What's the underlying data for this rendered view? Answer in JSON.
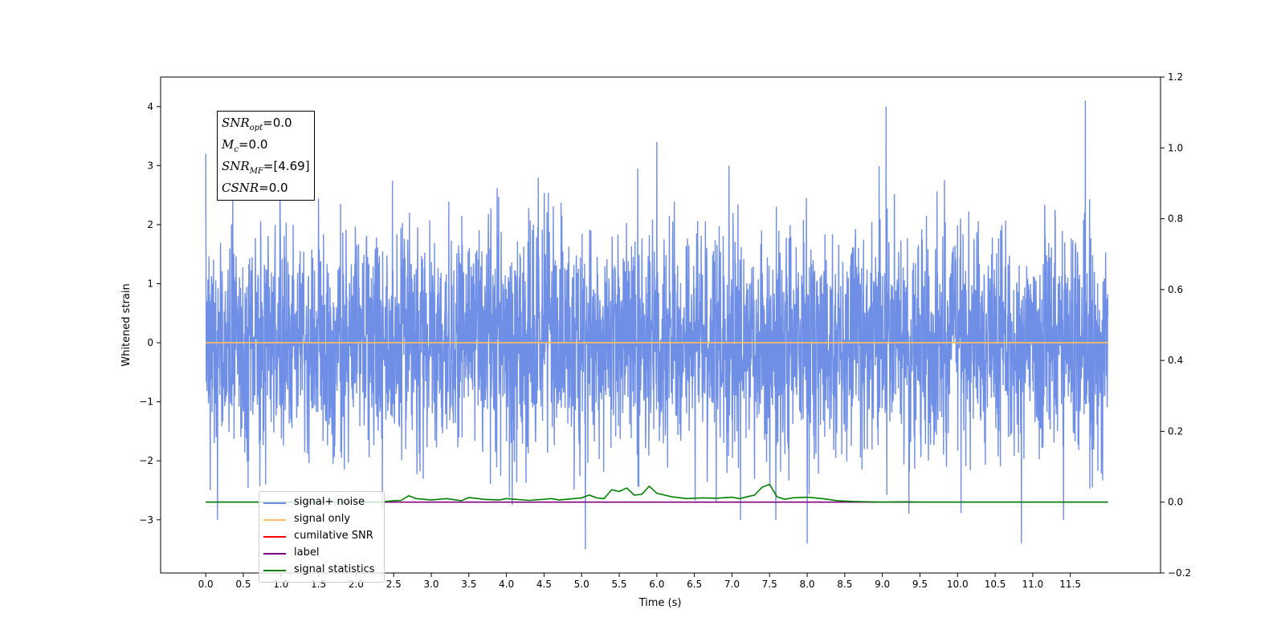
{
  "chart_data": {
    "type": "line",
    "xlabel": "Time (s)",
    "ylabel": "Whitened strain",
    "xlim": [
      -0.6,
      12.7
    ],
    "ylim": [
      -3.9,
      4.5
    ],
    "y2lim": [
      -0.2,
      1.2
    ],
    "x_ticks": [
      "0.0",
      "0.5",
      "1.0",
      "1.5",
      "2.0",
      "2.5",
      "3.0",
      "3.5",
      "4.0",
      "4.5",
      "5.0",
      "5.5",
      "6.0",
      "6.5",
      "7.0",
      "7.5",
      "8.0",
      "8.5",
      "9.0",
      "9.5",
      "10.0",
      "10.5",
      "11.0",
      "11.5"
    ],
    "y_ticks": [
      "−3",
      "−2",
      "−1",
      "0",
      "1",
      "2",
      "3",
      "4"
    ],
    "y_tick_values": [
      -3,
      -2,
      -1,
      0,
      1,
      2,
      3,
      4
    ],
    "y2_ticks": [
      "−0.2",
      "0.0",
      "0.2",
      "0.4",
      "0.6",
      "0.8",
      "1.0",
      "1.2"
    ],
    "y2_tick_values": [
      -0.2,
      0.0,
      0.2,
      0.4,
      0.6,
      0.8,
      1.0,
      1.2
    ],
    "series": [
      {
        "name": "signal+ noise",
        "color": "#6f8ee6",
        "axis": "left",
        "description_of_values": "whitened noise, approx. gaussian, range about -3.5 to 4.1",
        "notable_peaks": [
          [
            0.0,
            3.2
          ],
          [
            6.0,
            3.4
          ],
          [
            9.05,
            4.0
          ],
          [
            11.7,
            4.1
          ],
          [
            5.05,
            -3.5
          ],
          [
            10.85,
            -3.4
          ],
          [
            8.0,
            -3.4
          ]
        ]
      },
      {
        "name": "signal only",
        "color": "#ffbf60",
        "axis": "left",
        "x": [
          0.0,
          12.0
        ],
        "y": [
          0.0,
          0.0
        ]
      },
      {
        "name": "cumilative SNR",
        "color": "#ff0000",
        "axis": "right",
        "x": [],
        "y": []
      },
      {
        "name": "label",
        "color": "#800080",
        "axis": "right",
        "x": [
          0.0,
          12.0
        ],
        "y": [
          0.0,
          0.0
        ]
      },
      {
        "name": "signal statistics",
        "color": "#008000",
        "axis": "right",
        "x": [
          0.0,
          2.3,
          2.5,
          2.6,
          2.7,
          2.8,
          3.0,
          3.2,
          3.4,
          3.5,
          3.7,
          3.9,
          4.0,
          4.3,
          4.5,
          4.6,
          4.7,
          4.9,
          5.0,
          5.1,
          5.2,
          5.3,
          5.4,
          5.5,
          5.6,
          5.7,
          5.8,
          5.9,
          6.0,
          6.2,
          6.4,
          6.6,
          6.8,
          7.0,
          7.1,
          7.2,
          7.3,
          7.4,
          7.5,
          7.6,
          7.7,
          7.8,
          8.0,
          8.2,
          8.4,
          8.6,
          8.8,
          9.0,
          9.3,
          9.5,
          10.0,
          10.5,
          11.0,
          11.5,
          12.0
        ],
        "y": [
          0.0,
          0.0,
          0.004,
          0.005,
          0.018,
          0.01,
          0.006,
          0.01,
          0.004,
          0.013,
          0.008,
          0.006,
          0.01,
          0.005,
          0.008,
          0.01,
          0.006,
          0.01,
          0.012,
          0.02,
          0.012,
          0.01,
          0.035,
          0.03,
          0.04,
          0.02,
          0.022,
          0.045,
          0.025,
          0.015,
          0.01,
          0.012,
          0.011,
          0.014,
          0.01,
          0.015,
          0.02,
          0.042,
          0.05,
          0.015,
          0.008,
          0.012,
          0.014,
          0.01,
          0.004,
          0.002,
          0.001,
          0.0,
          0.001,
          0.0,
          0.0,
          0.0,
          0.0,
          0.0,
          0.0
        ]
      }
    ],
    "grid": false,
    "legend_position": "lower-left"
  },
  "annotation": {
    "lines": [
      {
        "symbol": "SNR",
        "sub": "opt",
        "value": "=0.0"
      },
      {
        "symbol": "M",
        "sub": "c",
        "value": "=0.0"
      },
      {
        "symbol": "SNR",
        "sub": "MF",
        "value": "=[4.69]"
      },
      {
        "symbol": "CSNR",
        "sub": "",
        "value": "=0.0"
      }
    ]
  },
  "legend": {
    "items": [
      {
        "label": "signal+ noise",
        "color": "#6f8ee6"
      },
      {
        "label": "signal only",
        "color": "#ffbf60"
      },
      {
        "label": "cumilative SNR",
        "color": "#ff0000"
      },
      {
        "label": "label",
        "color": "#800080"
      },
      {
        "label": "signal statistics",
        "color": "#008000"
      }
    ]
  }
}
